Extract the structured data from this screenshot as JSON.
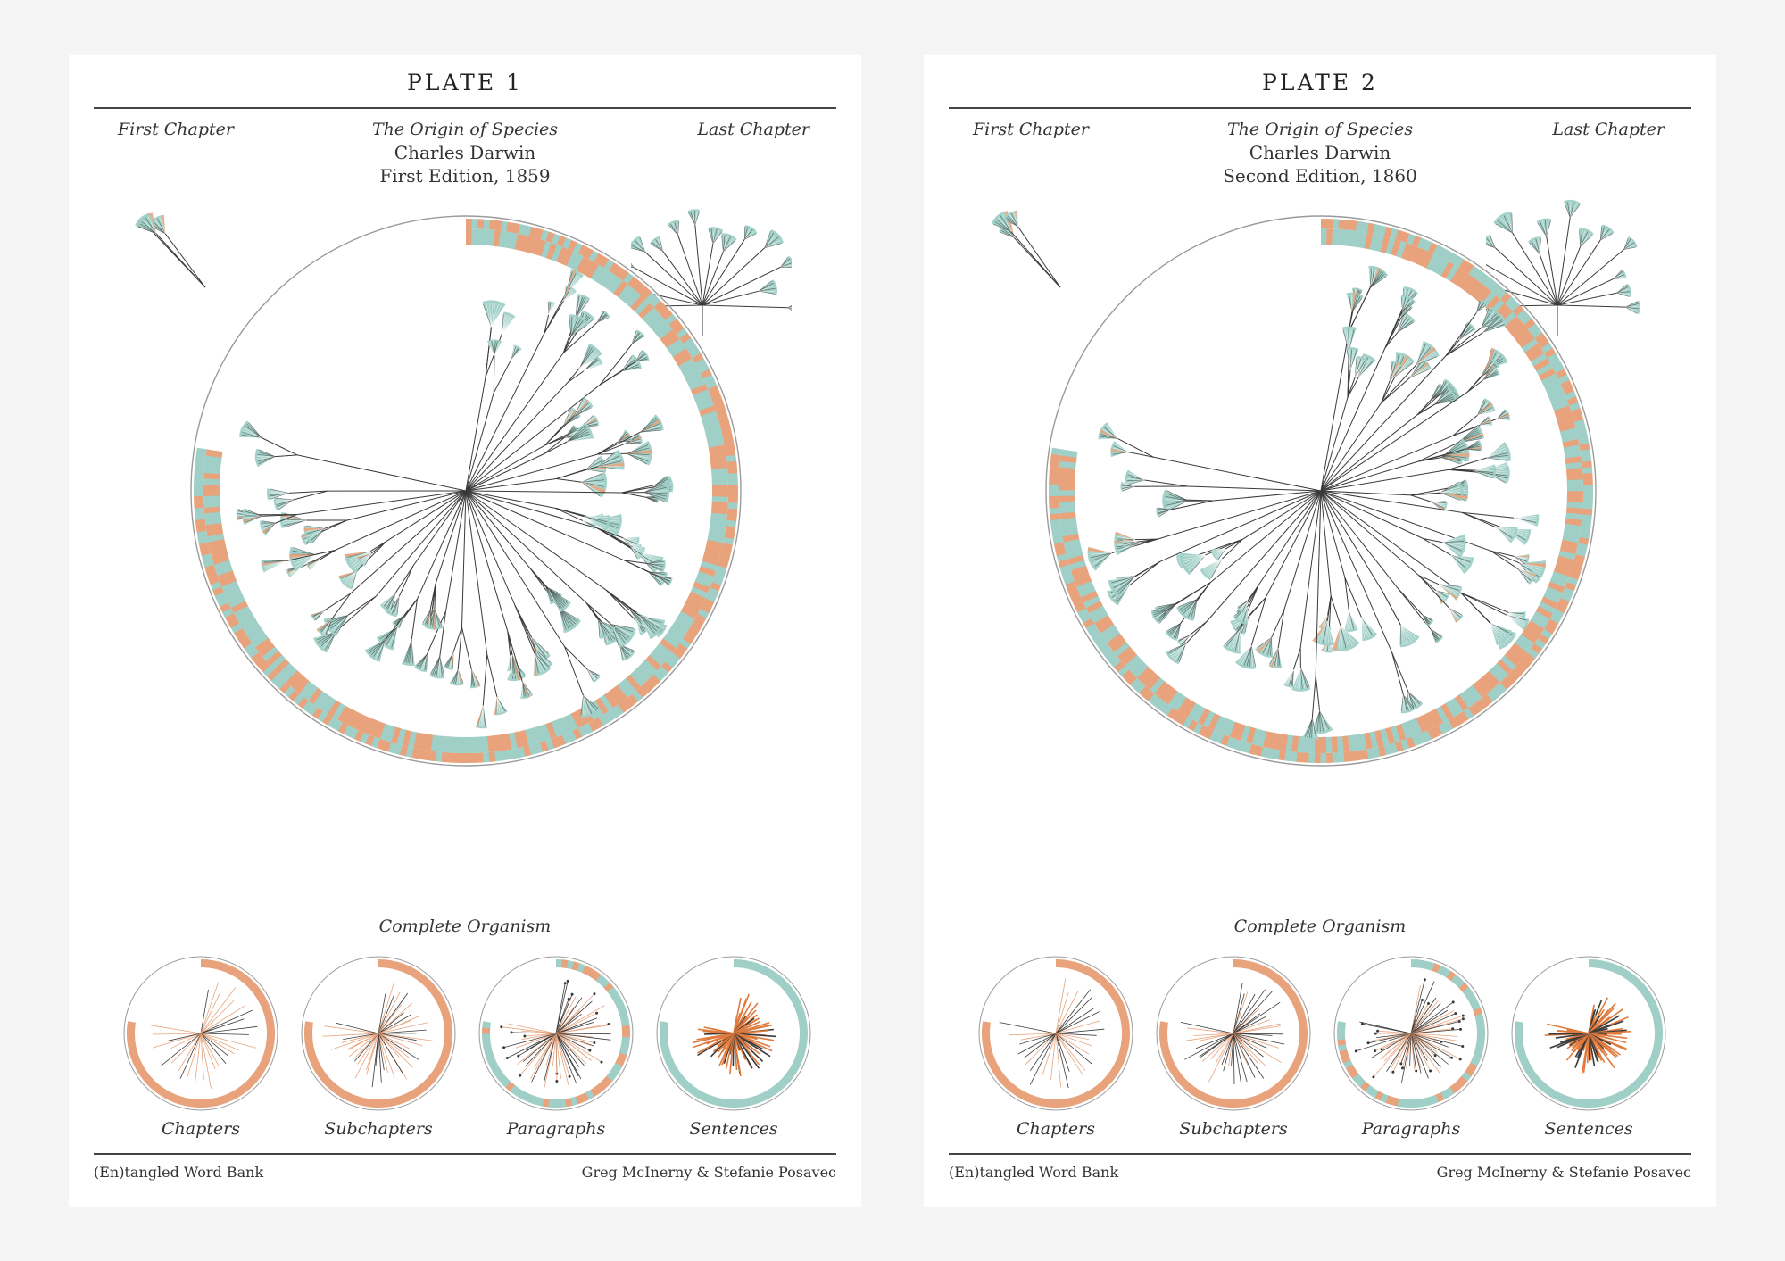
{
  "plates": [
    {
      "plate_title": "PLATE 1",
      "first_chapter_label": "First Chapter",
      "last_chapter_label": "Last Chapter",
      "book_title": "The Origin of Species",
      "author": "Charles Darwin",
      "edition": "First Edition, 1859",
      "organism_label": "Complete Organism",
      "small_labels": [
        "Chapters",
        "Subchapters",
        "Paragraphs",
        "Sentences"
      ],
      "footer_left": "(En)tangled Word Bank",
      "footer_right": "Greg McInerny & Stefanie Posavec"
    },
    {
      "plate_title": "PLATE 2",
      "first_chapter_label": "First Chapter",
      "last_chapter_label": "Last Chapter",
      "book_title": "The Origin of Species",
      "author": "Charles Darwin",
      "edition": "Second Edition, 1860",
      "organism_label": "Complete Organism",
      "small_labels": [
        "Chapters",
        "Subchapters",
        "Paragraphs",
        "Sentences"
      ],
      "footer_left": "(En)tangled Word Bank",
      "footer_right": "Greg McInerny & Stefanie Posavec"
    }
  ],
  "colors": {
    "teal": "#9fcfc6",
    "teal_dark": "#6aa9a3",
    "orange": "#e8a37c",
    "orange_dark": "#e07a3c",
    "branch": "#3a3a3a",
    "outline": "#9a9a9a"
  }
}
